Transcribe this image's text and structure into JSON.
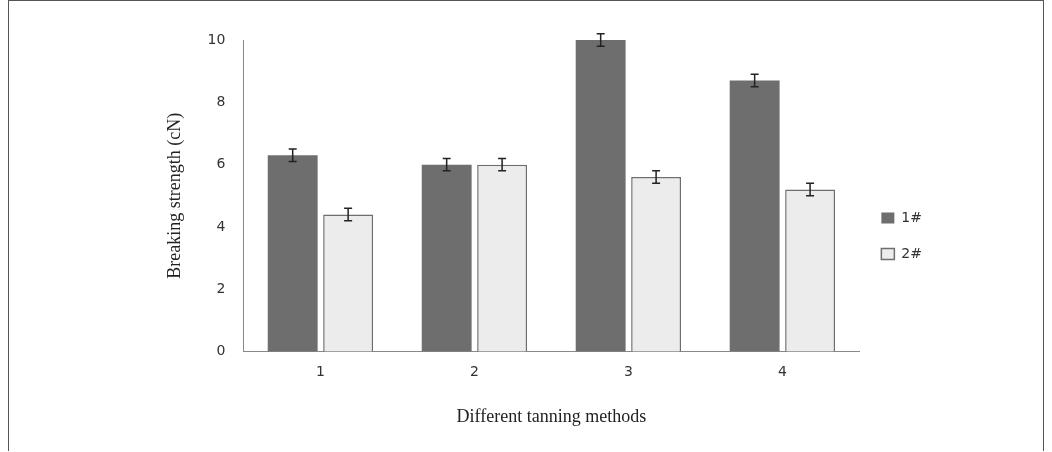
{
  "chart_data": {
    "type": "bar",
    "xlabel": "Different tanning methods",
    "ylabel": "Breaking strength (cN)",
    "categories": [
      "1",
      "2",
      "3",
      "4"
    ],
    "series": [
      {
        "name": "1#",
        "color": "#6e6e6e",
        "values": [
          6.3,
          6.0,
          10.0,
          8.7
        ],
        "errors": [
          0.2,
          0.2,
          0.2,
          0.2
        ]
      },
      {
        "name": "2#",
        "color": "#ececec",
        "values": [
          4.4,
          6.0,
          5.6,
          5.2
        ],
        "errors": [
          0.2,
          0.2,
          0.2,
          0.2
        ]
      }
    ],
    "ylim": [
      0,
      10
    ],
    "yticks": [
      0,
      2,
      4,
      6,
      8,
      10
    ],
    "grid": false,
    "legend": "right"
  }
}
